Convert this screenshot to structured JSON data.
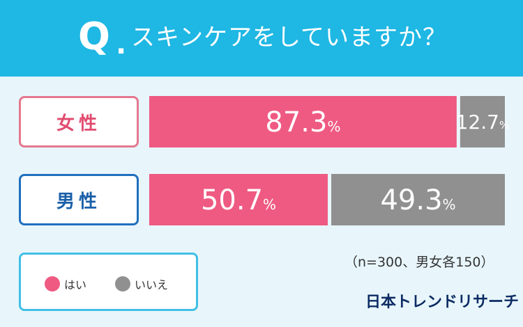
{
  "header": {
    "q_mark": "Q",
    "q_dot": ".",
    "question": "スキンケアをしていますか？"
  },
  "chart_data": {
    "type": "bar",
    "stacked": true,
    "orientation": "horizontal",
    "categories": [
      "女性",
      "男性"
    ],
    "unit": "%",
    "series": [
      {
        "name": "はい",
        "values": [
          87.3,
          50.7
        ],
        "color": "#ef5a82"
      },
      {
        "name": "いいえ",
        "values": [
          12.7,
          49.3
        ],
        "color": "#909090"
      }
    ],
    "xlim": [
      0,
      100
    ],
    "legend_position": "bottom-left"
  },
  "labels": {
    "female": "女性",
    "male": "男性"
  },
  "sample_note": "（n=300、男女各150）",
  "legend": {
    "yes": "はい",
    "no": "いいえ",
    "yes_icon": "pink-circle",
    "no_icon": "gray-circle"
  },
  "logo": "日本トレンドリサーチ"
}
